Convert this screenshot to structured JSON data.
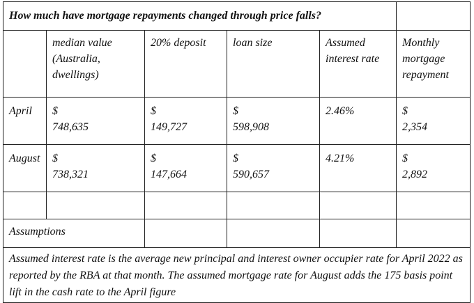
{
  "title": "How much have mortgage repayments changed through price falls?",
  "columns": [
    "",
    "median value (Australia, dwellings)",
    "20% deposit",
    "loan size",
    "Assumed interest rate",
    "Monthly mortgage repayment"
  ],
  "rows": [
    {
      "label": "April",
      "median": {
        "cur": "$",
        "num": "748,635"
      },
      "deposit": {
        "cur": "$",
        "num": "149,727"
      },
      "loan": {
        "cur": "$",
        "num": "598,908"
      },
      "rate": "2.46%",
      "repay": {
        "cur": "$",
        "num": "2,354"
      }
    },
    {
      "label": "August",
      "median": {
        "cur": "$",
        "num": "738,321"
      },
      "deposit": {
        "cur": "$",
        "num": "147,664"
      },
      "loan": {
        "cur": "$",
        "num": "590,657"
      },
      "rate": "4.21%",
      "repay": {
        "cur": "$",
        "num": "2,892"
      }
    }
  ],
  "assumptions_label": "Assumptions",
  "note": "Assumed interest rate is the average new principal and interest owner occupier rate for April 2022 as reported by the RBA at that month. The assumed mortgage rate for August adds the 175 basis point lift in the cash rate to the April figure"
}
